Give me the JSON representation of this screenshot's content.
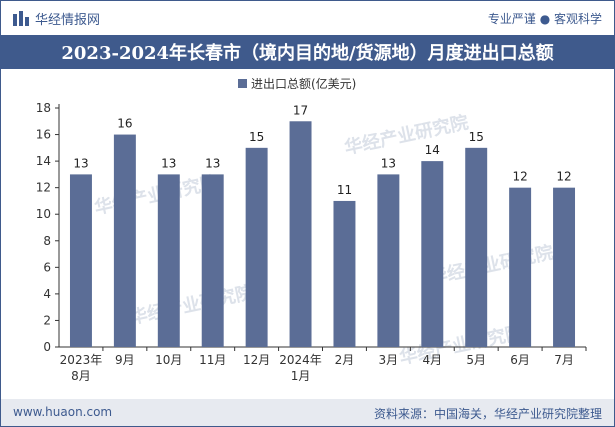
{
  "header": {
    "brand": "华经情报网",
    "slogan": "专业严谨 ● 客观科学"
  },
  "footer": {
    "website": "www.huaon.com",
    "source": "资料来源：中国海关，华经产业研究院整理"
  },
  "watermark": "华经产业研究院",
  "colors": {
    "bar": "#5b6d96",
    "brand": "#3f5a8c"
  },
  "chart_data": {
    "type": "bar",
    "title": "2023-2024年长春市（境内目的地/货源地）月度进出口总额",
    "legend": "进出口总额(亿美元)",
    "categories": [
      [
        "2023年",
        "8月"
      ],
      [
        "9月"
      ],
      [
        "10月"
      ],
      [
        "11月"
      ],
      [
        "12月"
      ],
      [
        "2024年",
        "1月"
      ],
      [
        "2月"
      ],
      [
        "3月"
      ],
      [
        "4月"
      ],
      [
        "5月"
      ],
      [
        "6月"
      ],
      [
        "7月"
      ]
    ],
    "series": [
      {
        "name": "进出口总额(亿美元)",
        "values": [
          13,
          16,
          13,
          13,
          15,
          17,
          11,
          13,
          14,
          15,
          12,
          12
        ]
      }
    ],
    "ylim": [
      0,
      18
    ],
    "yticks": [
      0,
      2,
      4,
      6,
      8,
      10,
      12,
      14,
      16,
      18
    ]
  }
}
